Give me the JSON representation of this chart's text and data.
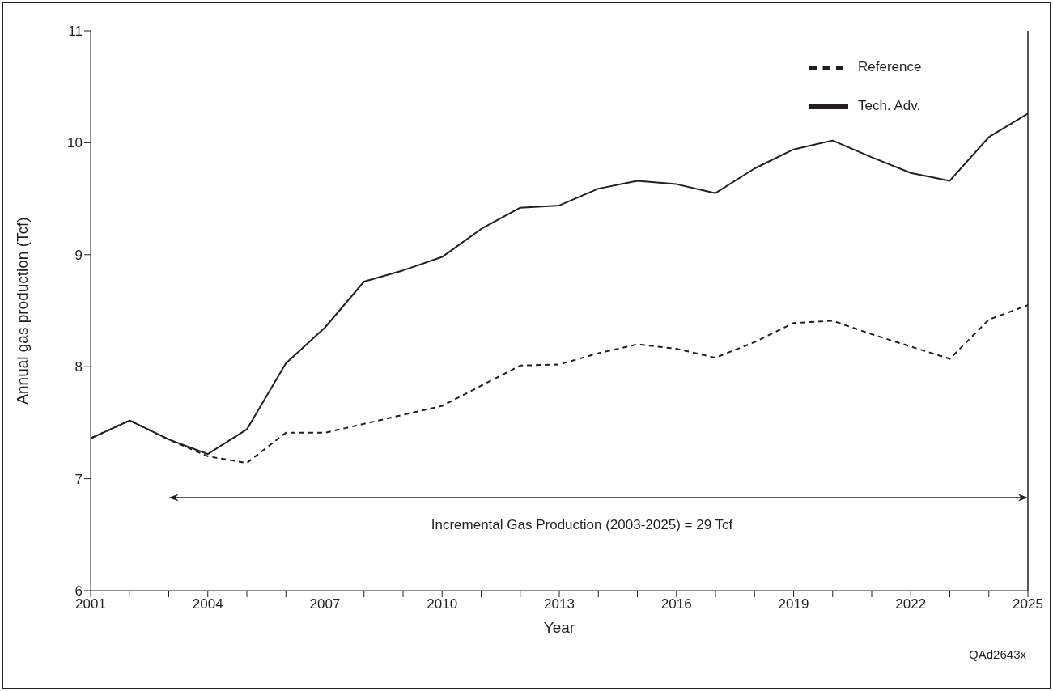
{
  "chart_data": {
    "type": "line",
    "xlabel": "Year",
    "ylabel": "Annual gas production (Tcf)",
    "x": [
      2001,
      2002,
      2003,
      2004,
      2005,
      2006,
      2007,
      2008,
      2009,
      2010,
      2011,
      2012,
      2013,
      2014,
      2015,
      2016,
      2017,
      2018,
      2019,
      2020,
      2021,
      2022,
      2023,
      2024,
      2025
    ],
    "series": [
      {
        "name": "Reference",
        "color": "#231f20",
        "line_style": "dashed",
        "values": [
          7.36,
          7.52,
          7.35,
          7.2,
          7.14,
          7.41,
          7.41,
          7.49,
          7.57,
          7.65,
          7.83,
          8.01,
          8.02,
          8.12,
          8.2,
          8.16,
          8.08,
          8.22,
          8.39,
          8.41,
          8.29,
          8.18,
          8.07,
          8.42,
          8.55
        ]
      },
      {
        "name": "Tech. Adv.",
        "color": "#231f20",
        "line_style": "solid",
        "values": [
          7.36,
          7.52,
          7.35,
          7.22,
          7.44,
          8.03,
          8.35,
          8.76,
          8.86,
          8.98,
          9.23,
          9.42,
          9.44,
          9.59,
          9.66,
          9.63,
          9.55,
          9.77,
          9.94,
          10.02,
          9.87,
          9.73,
          9.66,
          10.05,
          10.26
        ]
      }
    ],
    "xlim": [
      2001,
      2025
    ],
    "xticks": [
      2001,
      {
        "value": 2002,
        "label": null
      },
      {
        "value": 2003,
        "label": null
      },
      2004,
      {
        "value": 2005,
        "label": null
      },
      {
        "value": 2006,
        "label": null
      },
      2007,
      {
        "value": 2008,
        "label": null
      },
      {
        "value": 2009,
        "label": null
      },
      2010,
      {
        "value": 2011,
        "label": null
      },
      {
        "value": 2012,
        "label": null
      },
      2013,
      {
        "value": 2014,
        "label": null
      },
      {
        "value": 2015,
        "label": null
      },
      2016,
      {
        "value": 2017,
        "label": null
      },
      {
        "value": 2018,
        "label": null
      },
      2019,
      {
        "value": 2020,
        "label": null
      },
      {
        "value": 2021,
        "label": null
      },
      2022,
      {
        "value": 2023,
        "label": null
      },
      {
        "value": 2024,
        "label": null
      },
      2025
    ],
    "ylim": [
      6,
      11
    ],
    "yticks": [
      6,
      7,
      8,
      9,
      10,
      11
    ],
    "legend": "top right",
    "grid": false,
    "marker": "none",
    "annotations": [
      "Incremental Gas Production (2003-2025) = 29 Tcf",
      "QAd2643x"
    ]
  }
}
